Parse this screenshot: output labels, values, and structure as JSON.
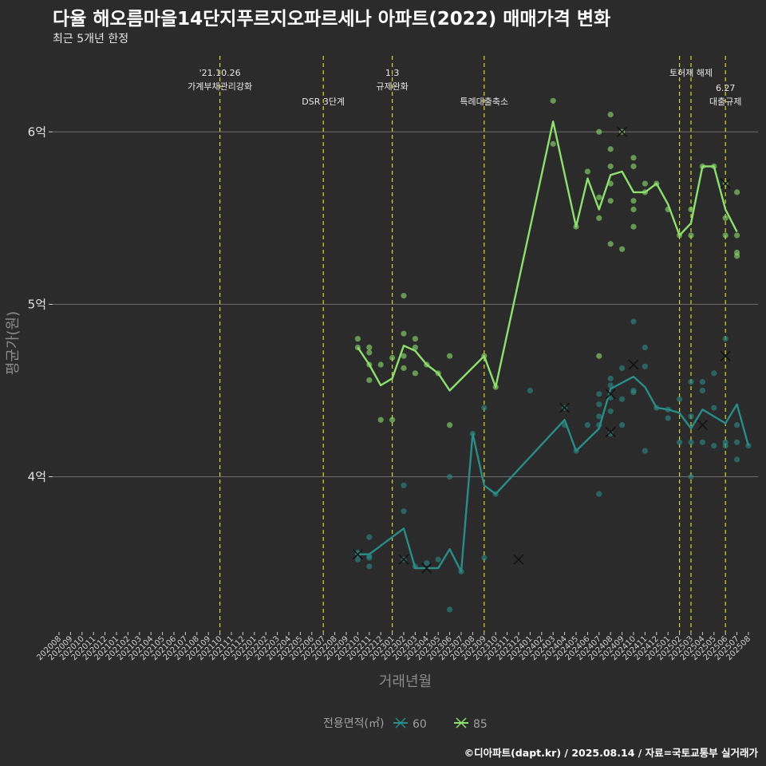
{
  "title": "다율 해오름마을14단지푸르지오파르세나 아파트(2022) 매매가격 변화",
  "subtitle": "최근 5개년 한정",
  "caption": "©디아파트(dapt.kr) / 2025.08.14 / 자료=국토교통부 실거래가",
  "colors": {
    "background": "#2b2b2b",
    "series_60": "#2a8c88",
    "series_85": "#8ee06e",
    "policy_line": "#d6d62a",
    "grid": "#6e6e6e"
  },
  "chart_data": {
    "type": "line",
    "xlabel": "거래년월",
    "ylabel": "평균가(원)",
    "x": [
      "202008",
      "202009",
      "202010",
      "202011",
      "202012",
      "202101",
      "202102",
      "202103",
      "202104",
      "202105",
      "202106",
      "202107",
      "202108",
      "202109",
      "202110",
      "202111",
      "202112",
      "202201",
      "202202",
      "202203",
      "202204",
      "202205",
      "202206",
      "202207",
      "202208",
      "202209",
      "202210",
      "202211",
      "202212",
      "202301",
      "202302",
      "202303",
      "202304",
      "202305",
      "202306",
      "202307",
      "202308",
      "202309",
      "202310",
      "202311",
      "202312",
      "202401",
      "202402",
      "202403",
      "202404",
      "202405",
      "202406",
      "202407",
      "202408",
      "202409",
      "202410",
      "202411",
      "202412",
      "202501",
      "202502",
      "202503",
      "202504",
      "202505",
      "202506",
      "202507",
      "202508"
    ],
    "y_ticks": [
      {
        "value": 40000,
        "label": "4억"
      },
      {
        "value": 50000,
        "label": "5억"
      },
      {
        "value": 60000,
        "label": "6억"
      }
    ],
    "ylim": [
      31000,
      64500
    ],
    "grid": true,
    "legend": {
      "title": "전용면적(㎡)",
      "position": "bottom",
      "entries": [
        "60",
        "85"
      ]
    },
    "series": [
      {
        "name": "60",
        "avg_line": [
          [
            "202210",
            35500
          ],
          [
            "202211",
            35500
          ],
          [
            "202302",
            37000
          ],
          [
            "202303",
            34700
          ],
          [
            "202304",
            34700
          ],
          [
            "202305",
            34700
          ],
          [
            "202306",
            35800
          ],
          [
            "202307",
            34500
          ],
          [
            "202308",
            42500
          ],
          [
            "202309",
            39500
          ],
          [
            "202310",
            39000
          ],
          [
            "202404",
            43300
          ],
          [
            "202405",
            41500
          ],
          [
            "202407",
            42800
          ],
          [
            "202408",
            45100
          ],
          [
            "202410",
            45800
          ],
          [
            "202411",
            45200
          ],
          [
            "202412",
            44000
          ],
          [
            "202501",
            43900
          ],
          [
            "202502",
            43700
          ],
          [
            "202503",
            42800
          ],
          [
            "202504",
            43900
          ],
          [
            "202505",
            43500
          ],
          [
            "202506",
            43100
          ],
          [
            "202507",
            44200
          ],
          [
            "202508",
            41800
          ]
        ],
        "points": [
          [
            202210,
            35600
          ],
          [
            202210,
            35200
          ],
          [
            202210,
            35500
          ],
          [
            202211,
            35300
          ],
          [
            202211,
            34800
          ],
          [
            202211,
            36500
          ],
          [
            202211,
            35400
          ],
          [
            202302,
            38000
          ],
          [
            202302,
            39500
          ],
          [
            202302,
            35200
          ],
          [
            202303,
            34800
          ],
          [
            202304,
            35000
          ],
          [
            202305,
            35200
          ],
          [
            202306,
            32300
          ],
          [
            202306,
            40000
          ],
          [
            202307,
            34500
          ],
          [
            202308,
            42500
          ],
          [
            202309,
            44000
          ],
          [
            202309,
            35300
          ],
          [
            202310,
            39000
          ],
          [
            202401,
            45000
          ],
          [
            202404,
            44000
          ],
          [
            202404,
            43000
          ],
          [
            202405,
            41500
          ],
          [
            202406,
            43000
          ],
          [
            202407,
            39000
          ],
          [
            202407,
            43000
          ],
          [
            202407,
            43500
          ],
          [
            202407,
            44200
          ],
          [
            202407,
            44800
          ],
          [
            202408,
            45300
          ],
          [
            202408,
            44600
          ],
          [
            202408,
            42500
          ],
          [
            202408,
            43800
          ],
          [
            202408,
            45700
          ],
          [
            202409,
            44500
          ],
          [
            202409,
            46300
          ],
          [
            202409,
            43000
          ],
          [
            202410,
            49000
          ],
          [
            202410,
            44900
          ],
          [
            202410,
            45000
          ],
          [
            202411,
            47500
          ],
          [
            202411,
            41500
          ],
          [
            202411,
            46400
          ],
          [
            202412,
            44000
          ],
          [
            202501,
            43900
          ],
          [
            202501,
            43400
          ],
          [
            202502,
            44500
          ],
          [
            202502,
            42000
          ],
          [
            202503,
            40000
          ],
          [
            202503,
            42000
          ],
          [
            202503,
            43500
          ],
          [
            202503,
            45500
          ],
          [
            202504,
            45500
          ],
          [
            202504,
            45000
          ],
          [
            202504,
            42000
          ],
          [
            202505,
            44000
          ],
          [
            202505,
            46000
          ],
          [
            202505,
            41800
          ],
          [
            202506,
            42000
          ],
          [
            202506,
            48000
          ],
          [
            202506,
            41800
          ],
          [
            202507,
            41000
          ],
          [
            202507,
            42000
          ],
          [
            202507,
            43000
          ],
          [
            202508,
            41800
          ]
        ],
        "cancelled": [
          [
            202210,
            35500
          ],
          [
            202302,
            35200
          ],
          [
            202304,
            34700
          ],
          [
            202312,
            35200
          ],
          [
            202404,
            44000
          ],
          [
            202408,
            44800
          ],
          [
            202408,
            42600
          ],
          [
            202410,
            46500
          ],
          [
            202504,
            43000
          ]
        ]
      },
      {
        "name": "85",
        "avg_line": [
          [
            "202210",
            47500
          ],
          [
            "202211",
            46500
          ],
          [
            "202212",
            45300
          ],
          [
            "202301",
            45700
          ],
          [
            "202302",
            47600
          ],
          [
            "202303",
            47300
          ],
          [
            "202304",
            46500
          ],
          [
            "202305",
            46000
          ],
          [
            "202306",
            45000
          ],
          [
            "202309",
            47000
          ],
          [
            "202310",
            45200
          ],
          [
            "202403",
            60600
          ],
          [
            "202405",
            54500
          ],
          [
            "202406",
            57300
          ],
          [
            "202407",
            55500
          ],
          [
            "202408",
            57500
          ],
          [
            "202409",
            57700
          ],
          [
            "202410",
            56500
          ],
          [
            "202411",
            56500
          ],
          [
            "202412",
            57000
          ],
          [
            "202501",
            55800
          ],
          [
            "202502",
            54000
          ],
          [
            "202503",
            54700
          ],
          [
            "202504",
            58000
          ],
          [
            "202505",
            58000
          ],
          [
            "202506",
            55500
          ],
          [
            "202507",
            54200
          ]
        ],
        "points": [
          [
            202210,
            48000
          ],
          [
            202210,
            47500
          ],
          [
            202211,
            47500
          ],
          [
            202211,
            47200
          ],
          [
            202211,
            46500
          ],
          [
            202211,
            45600
          ],
          [
            202212,
            46500
          ],
          [
            202212,
            43300
          ],
          [
            202301,
            46900
          ],
          [
            202301,
            43300
          ],
          [
            202302,
            50500
          ],
          [
            202302,
            48300
          ],
          [
            202302,
            47000
          ],
          [
            202302,
            46300
          ],
          [
            202303,
            48000
          ],
          [
            202303,
            47500
          ],
          [
            202303,
            46000
          ],
          [
            202304,
            46500
          ],
          [
            202305,
            46000
          ],
          [
            202306,
            47000
          ],
          [
            202306,
            43000
          ],
          [
            202309,
            47000
          ],
          [
            202310,
            45200
          ],
          [
            202403,
            61800
          ],
          [
            202403,
            59300
          ],
          [
            202405,
            54500
          ],
          [
            202406,
            57700
          ],
          [
            202407,
            60000
          ],
          [
            202407,
            56200
          ],
          [
            202407,
            55000
          ],
          [
            202407,
            47000
          ],
          [
            202408,
            61000
          ],
          [
            202408,
            59000
          ],
          [
            202408,
            58000
          ],
          [
            202408,
            57000
          ],
          [
            202408,
            53500
          ],
          [
            202408,
            56000
          ],
          [
            202409,
            60000
          ],
          [
            202409,
            53200
          ],
          [
            202410,
            58500
          ],
          [
            202410,
            58000
          ],
          [
            202410,
            55500
          ],
          [
            202410,
            56000
          ],
          [
            202410,
            54500
          ],
          [
            202411,
            56500
          ],
          [
            202411,
            57000
          ],
          [
            202412,
            57000
          ],
          [
            202501,
            55500
          ],
          [
            202502,
            54000
          ],
          [
            202503,
            55500
          ],
          [
            202503,
            54000
          ],
          [
            202504,
            58000
          ],
          [
            202505,
            58000
          ],
          [
            202506,
            55000
          ],
          [
            202506,
            54000
          ],
          [
            202506,
            57000
          ],
          [
            202507,
            54000
          ],
          [
            202507,
            53000
          ],
          [
            202507,
            52800
          ],
          [
            202507,
            56500
          ]
        ],
        "cancelled": [
          [
            202409,
            60000
          ],
          [
            202506,
            57000
          ],
          [
            202506,
            47000
          ]
        ]
      }
    ],
    "annotations": [
      {
        "x": "202110",
        "lines": [
          "'21.10.26",
          "가계부채관리강화"
        ],
        "row": 0
      },
      {
        "x": "202207",
        "lines": [
          "DSR 3단계"
        ],
        "row": 1
      },
      {
        "x": "202301",
        "lines": [
          "1.3",
          "규제완화"
        ],
        "row": 0
      },
      {
        "x": "202309",
        "lines": [
          "특례대출축소"
        ],
        "row": 1
      },
      {
        "x": "202502",
        "lines": [],
        "row": 0
      },
      {
        "x": "202503",
        "lines": [
          "토허제 해제"
        ],
        "row": 0
      },
      {
        "x": "202506",
        "lines": [
          "6.27",
          "대출규제"
        ],
        "row": 1
      }
    ]
  }
}
